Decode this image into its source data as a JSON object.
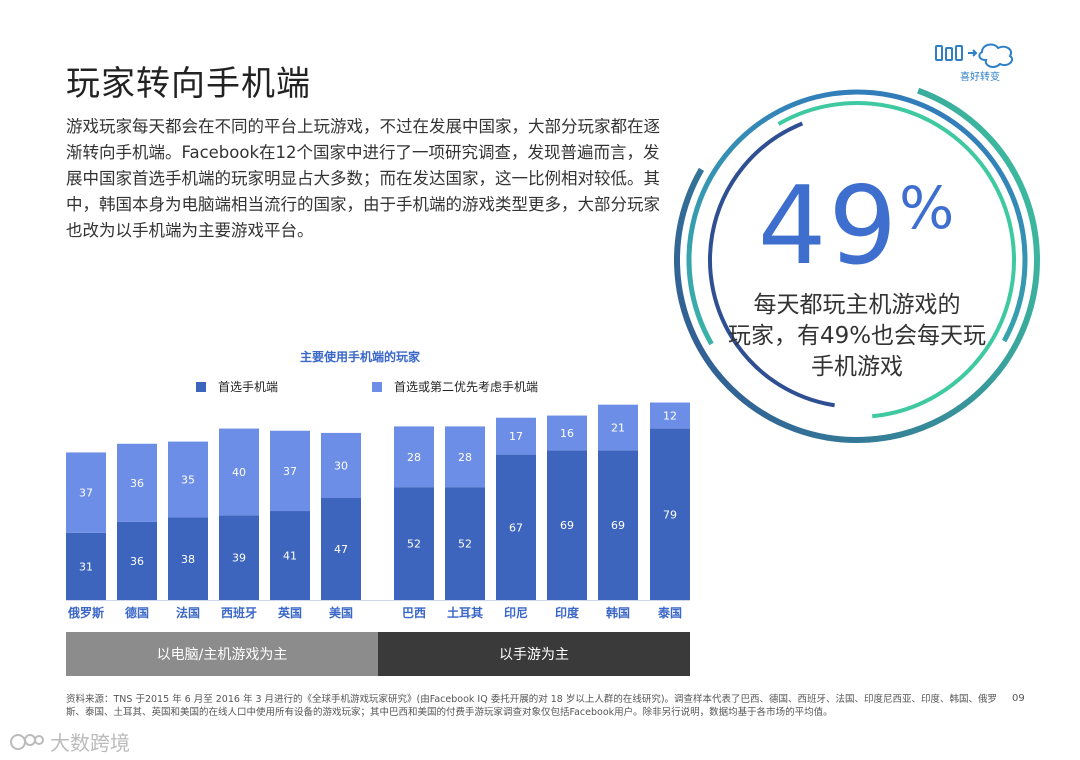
{
  "page": {
    "title": "玩家转向手机端",
    "body": "游戏玩家每天都会在不同的平台上玩游戏，不过在发展中国家，大部分玩家都在逐渐转向手机端。Facebook在12个国家中进行了一项研究调查，发现普遍而言，发展中国家首选手机端的玩家明显占大多数；而在发达国家，这一比例相对较低。其中，韩国本身为电脑端相当流行的国家，由于手机端的游戏类型更多，大部分玩家也改为以手机端为主要游戏平台。",
    "logo_text": "喜好转变",
    "page_number": "09",
    "watermark": "大数跨境",
    "footnote": "资料来源：TNS 于2015 年 6 月至 2016 年 3 月进行的《全球手机游戏玩家研究》(由Facebook IQ 委托开展的对 18 岁以上人群的在线研究)。调查样本代表了巴西、德国、西班牙、法国、印度尼西亚、印度、韩国、俄罗斯、泰国、土耳其、英国和美国的在线人口中使用所有设备的游戏玩家；其中巴西和美国的付费手游玩家调查对象仅包括Facebook用户。除非另行说明，数据均基于各市场的平均值。"
  },
  "stat": {
    "number": "49",
    "percent": "%",
    "caption_lines": [
      "每天都玩主机游戏的",
      "玩家，有49%也会每天玩",
      "手机游戏"
    ]
  },
  "colors": {
    "primary": "#3e65bd",
    "secondary": "#6d8ee6",
    "ring_dark": "#2f4f93",
    "ring_teal": "#3ec9a0",
    "group_pc": "#8c8c8c",
    "group_mobile": "#3a3a3a"
  },
  "chart_data": {
    "type": "bar",
    "stacked": true,
    "title": "主要使用手机端的玩家",
    "categories": [
      "俄罗斯",
      "德国",
      "法国",
      "西班牙",
      "英国",
      "美国",
      "巴西",
      "土耳其",
      "印尼",
      "印度",
      "韩国",
      "泰国"
    ],
    "series": [
      {
        "name": "首选手机端",
        "values": [
          31,
          36,
          38,
          39,
          41,
          47,
          52,
          52,
          67,
          69,
          69,
          79
        ]
      },
      {
        "name": "首选或第二优先考虑手机端",
        "values": [
          37,
          36,
          35,
          40,
          37,
          30,
          28,
          28,
          17,
          16,
          21,
          12
        ]
      }
    ],
    "groups": [
      {
        "label": "以电脑/主机游戏为主",
        "count": 6
      },
      {
        "label": "以手游为主",
        "count": 6
      }
    ],
    "ylim": [
      0,
      100
    ],
    "legend": "top-left",
    "grid": false
  }
}
